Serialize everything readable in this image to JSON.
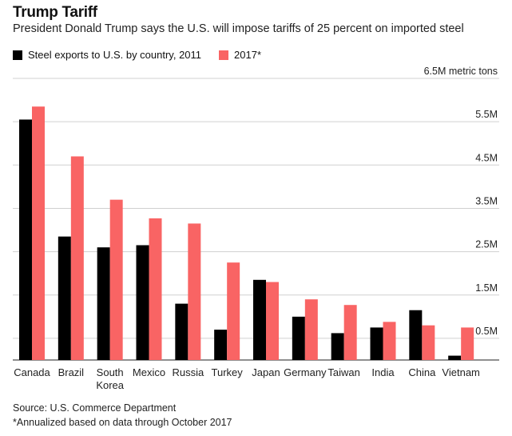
{
  "chart_data": {
    "type": "bar",
    "title": "Trump Tariff",
    "subtitle": "President Donald Trump says the U.S. will impose tariffs of 25 percent on imported steel",
    "categories": [
      "Canada",
      "Brazil",
      "South Korea",
      "Mexico",
      "Russia",
      "Turkey",
      "Japan",
      "Germany",
      "Taiwan",
      "India",
      "China",
      "Vietnam"
    ],
    "category_lines": [
      [
        "Canada"
      ],
      [
        "Brazil"
      ],
      [
        "South",
        "Korea"
      ],
      [
        "Mexico"
      ],
      [
        "Russia"
      ],
      [
        "Turkey"
      ],
      [
        "Japan"
      ],
      [
        "Germany"
      ],
      [
        "Taiwan"
      ],
      [
        "India"
      ],
      [
        "China"
      ],
      [
        "Vietnam"
      ]
    ],
    "series": [
      {
        "name": "Steel exports to U.S. by country, 2011",
        "color": "#000000",
        "values": [
          5.55,
          2.85,
          2.6,
          2.65,
          1.3,
          0.7,
          1.85,
          1.0,
          0.62,
          0.75,
          1.15,
          0.1
        ]
      },
      {
        "name": "2017*",
        "color": "#f96464",
        "values": [
          5.85,
          4.7,
          3.7,
          3.27,
          3.15,
          2.25,
          1.8,
          1.4,
          1.27,
          0.88,
          0.8,
          0.75
        ]
      }
    ],
    "ylim": [
      0,
      6.5
    ],
    "ytick_values": [
      0.5,
      1.5,
      2.5,
      3.5,
      4.5,
      5.5,
      6.5
    ],
    "ytick_labels": [
      "0.5M",
      "1.5M",
      "2.5M",
      "3.5M",
      "4.5M",
      "5.5M",
      "6.5M metric tons"
    ],
    "xlabel": "",
    "ylabel": "",
    "grid": true,
    "legend_position": "top-left"
  },
  "footer": {
    "source": "Source: U.S. Commerce Department",
    "note": "*Annualized based on data through October 2017"
  }
}
